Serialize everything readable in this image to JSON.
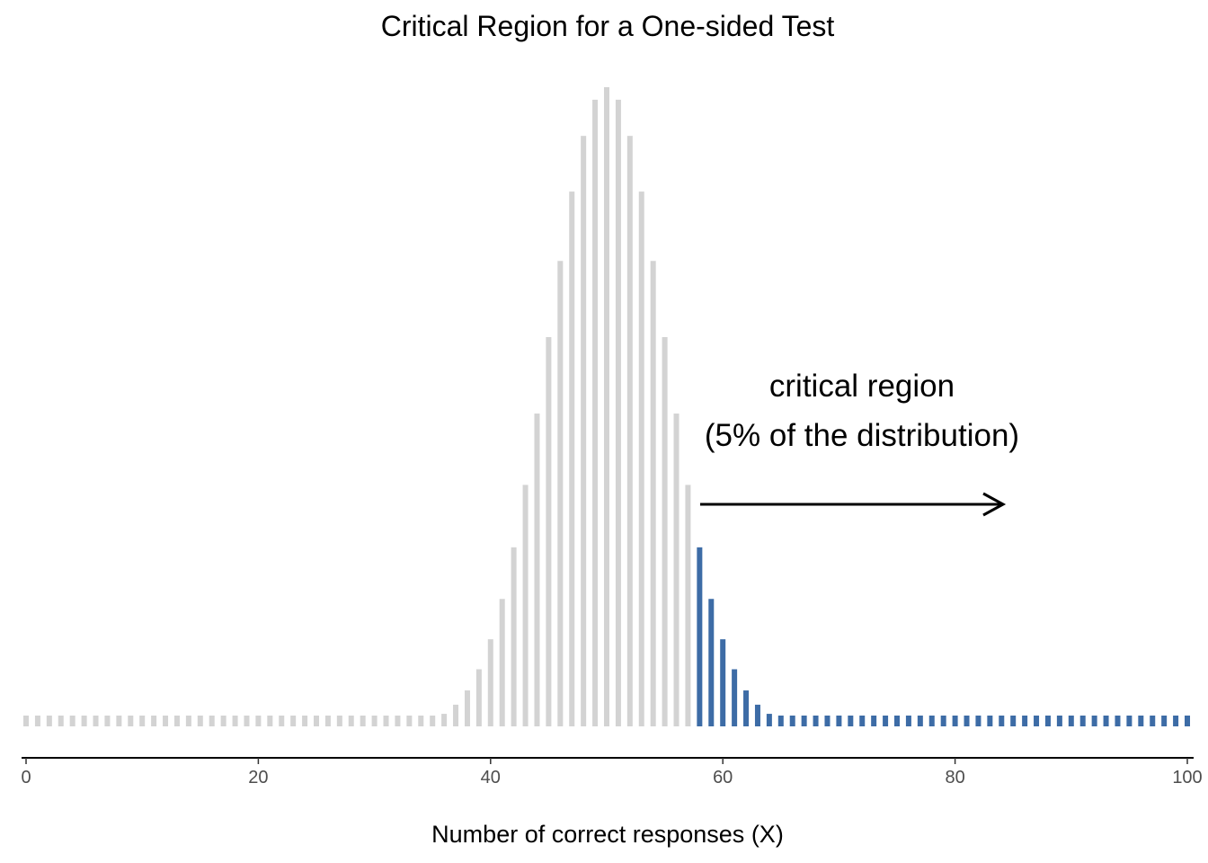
{
  "chart_data": {
    "type": "bar",
    "title": "Critical Region for a One-sided Test",
    "xlabel": "Number of correct responses (X)",
    "ylabel": "",
    "xlim": [
      0,
      100
    ],
    "ylim": [
      0,
      0.08
    ],
    "x_ticks": [
      "0",
      "20",
      "40",
      "60",
      "80",
      "100"
    ],
    "grid": false,
    "legend": "none",
    "distribution": "Binomial(100, 0.5)",
    "critical_value": 58,
    "colors": {
      "bar": "#d3d3d3",
      "critical": "#3d6ca6"
    },
    "annotation": {
      "line1": "critical region",
      "line2": "(5% of the distribution)"
    }
  }
}
